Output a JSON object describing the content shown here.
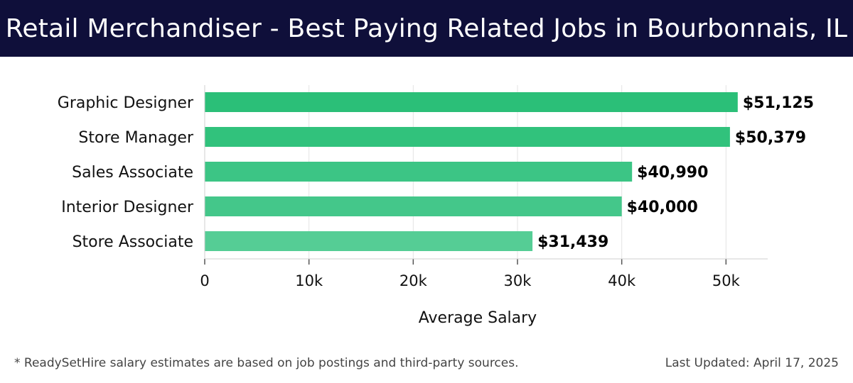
{
  "header": {
    "title": "Retail Merchandiser - Best Paying Related Jobs in Bourbonnais, IL"
  },
  "chart_data": {
    "type": "bar",
    "orientation": "horizontal",
    "categories": [
      "Graphic Designer",
      "Store Manager",
      "Sales Associate",
      "Interior Designer",
      "Store Associate"
    ],
    "values": [
      51125,
      50379,
      40990,
      40000,
      31439
    ],
    "value_labels": [
      "$51,125",
      "$50,379",
      "$40,990",
      "$40,000",
      "$31,439"
    ],
    "xlabel": "Average Salary",
    "xlim": [
      0,
      54000
    ],
    "xticks": [
      0,
      10000,
      20000,
      30000,
      40000,
      50000
    ],
    "xtick_labels": [
      "0",
      "10k",
      "20k",
      "30k",
      "40k",
      "50k"
    ],
    "grid": true,
    "bar_colors": [
      "#2bbf78",
      "#31c27c",
      "#3cc585",
      "#44c78a",
      "#55cd95"
    ]
  },
  "footer": {
    "note": "* ReadySetHire salary estimates are based on job postings and third-party sources.",
    "updated": "Last Updated: April 17, 2025"
  }
}
